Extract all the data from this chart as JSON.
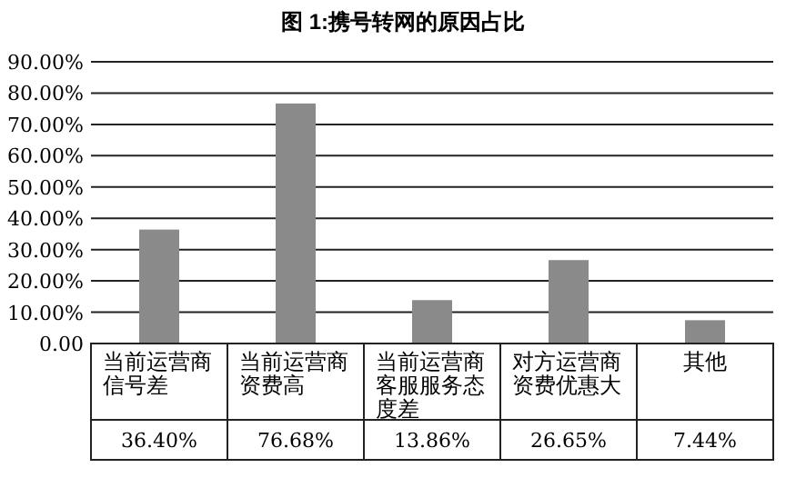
{
  "chart_data": {
    "type": "bar",
    "title": "图 1:携号转网的原因占比",
    "categories": [
      "当前运营商信号差",
      "当前运营商资费高",
      "当前运营商客服服务态度差",
      "对方运营商资费优惠大",
      "其他"
    ],
    "values": [
      36.4,
      76.68,
      13.86,
      26.65,
      7.44
    ],
    "value_labels": [
      "36.40%",
      "76.68%",
      "13.86%",
      "26.65%",
      "7.44%"
    ],
    "color": "#8a8a8a",
    "ylim": [
      0,
      90
    ],
    "yticks": [
      {
        "value": 0,
        "label": "0.00"
      },
      {
        "value": 10,
        "label": "10.00%"
      },
      {
        "value": 20,
        "label": "20.00%"
      },
      {
        "value": 30,
        "label": "30.00%"
      },
      {
        "value": 40,
        "label": "40.00%"
      },
      {
        "value": 50,
        "label": "50.00%"
      },
      {
        "value": 60,
        "label": "60.00%"
      },
      {
        "value": 70,
        "label": "70.00%"
      },
      {
        "value": 80,
        "label": "80.00%"
      },
      {
        "value": 90,
        "label": "90.00%"
      }
    ],
    "grid": "y"
  }
}
